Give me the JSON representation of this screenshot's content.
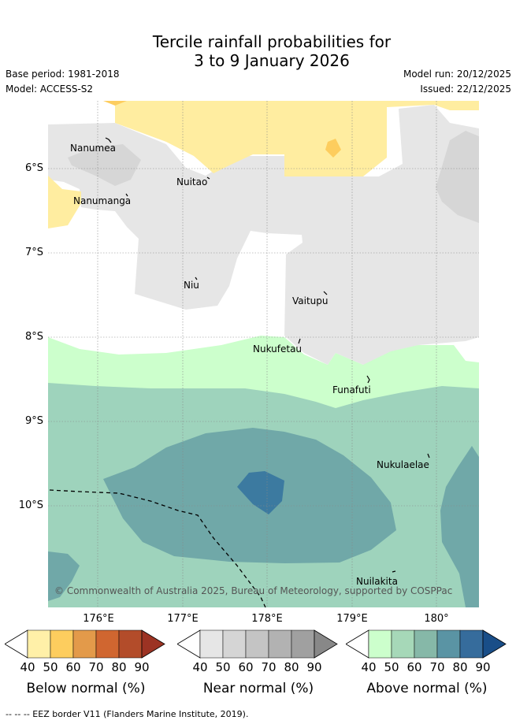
{
  "title": {
    "line1": "Tercile rainfall probabilities for",
    "line2": "3 to 9 January 2026"
  },
  "meta": {
    "base_period": "Base period: 1981-2018",
    "model": "Model: ACCESS-S2",
    "model_run": "Model run: 20/12/2025",
    "issued": "Issued: 22/12/2025"
  },
  "map": {
    "lat_labels": [
      "6°S",
      "7°S",
      "8°S",
      "9°S",
      "10°S"
    ],
    "lon_labels": [
      "176°E",
      "177°E",
      "178°E",
      "179°E",
      "180°"
    ],
    "places": [
      "Nanumea",
      "Nuitao",
      "Nanumanga",
      "Niu",
      "Vaitupu",
      "Nukufetau",
      "Funafuti",
      "Nukulaelae",
      "Nuilakita"
    ],
    "copyright": "© Commonwealth of Australia 2025, Bureau of Meteorology, supported by COSPPac"
  },
  "legend": {
    "below": {
      "label": "Below normal (%)",
      "ticks": [
        "40",
        "50",
        "60",
        "70",
        "80",
        "90"
      ],
      "colors": [
        "#fff0a8",
        "#fdcd5e",
        "#e39a4a",
        "#d06630",
        "#b34c2a",
        "#9c3323"
      ]
    },
    "near": {
      "label": "Near normal (%)",
      "ticks": [
        "40",
        "50",
        "60",
        "70",
        "80",
        "90"
      ],
      "colors": [
        "#e6e6e6",
        "#d5d5d5",
        "#c4c4c4",
        "#b2b2b2",
        "#a0a0a0",
        "#888888"
      ]
    },
    "above": {
      "label": "Above normal (%)",
      "ticks": [
        "40",
        "50",
        "60",
        "70",
        "80",
        "90"
      ],
      "colors": [
        "#ccffcc",
        "#a6d8b8",
        "#86b8a8",
        "#5a94a4",
        "#366c9c",
        "#194e88"
      ]
    }
  },
  "footer": {
    "eez_note": "-- -- -- EEZ border V11 (Flanders Marine Institute, 2019)."
  }
}
